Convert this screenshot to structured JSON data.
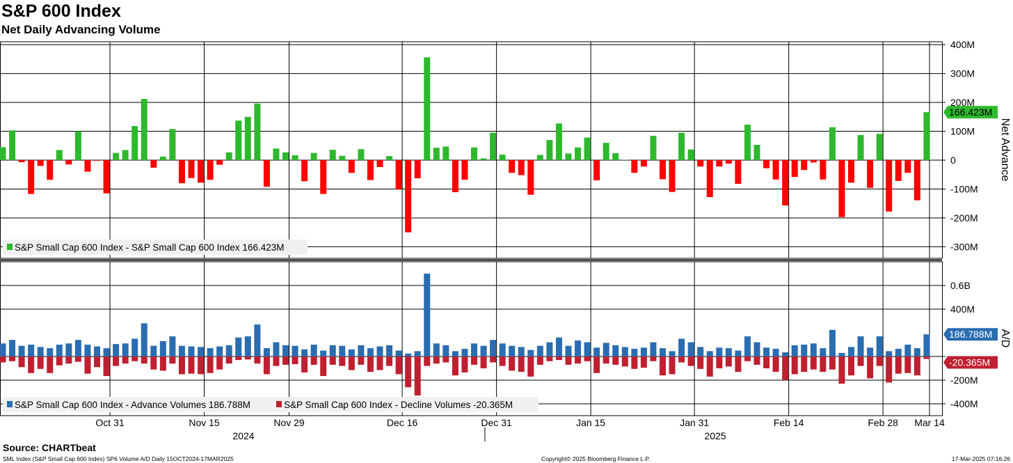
{
  "title": "S&P 600 Index",
  "subtitle": "Net Daily Advancing Volume",
  "source": "Source: CHARTbeat",
  "footer": {
    "left": "SML Index (S&P Small Cap 600 Index) SP6 Volume A/D  Daily 15OCT2024-17MAR2025",
    "center": "Copyright© 2025 Bloomberg Finance L.P.",
    "right": "17-Mar-2025 07:16:26"
  },
  "colors": {
    "up": "#2eb82e",
    "down": "#ff0000",
    "adv": "#2a6db0",
    "dec": "#bf1f2f"
  },
  "chart_data": [
    {
      "type": "bar",
      "ylabel": "Net Advance",
      "ylim": [
        -340,
        410
      ],
      "yticks": [
        400,
        300,
        200,
        100,
        0,
        -100,
        -200,
        -300
      ],
      "yticklabels": [
        "400M",
        "300M",
        "200M",
        "100M",
        "0",
        "-100M",
        "-200M",
        "-300M"
      ],
      "last_value_label": "166.423M",
      "legend": "S&P Small Cap 600 Index - S&P Small Cap 600 Index 166.423M",
      "values": [
        45,
        103,
        -7,
        -117,
        -20,
        -68,
        35,
        -15,
        100,
        -40,
        -2,
        -115,
        25,
        35,
        118,
        212,
        -26,
        12,
        108,
        -80,
        -62,
        -78,
        -68,
        -16,
        27,
        137,
        150,
        196,
        -92,
        40,
        27,
        17,
        -73,
        25,
        -117,
        36,
        15,
        -44,
        38,
        -69,
        -24,
        14,
        -102,
        -250,
        -63,
        356,
        43,
        47,
        -111,
        -68,
        44,
        6,
        95,
        19,
        -44,
        -52,
        -120,
        18,
        70,
        127,
        23,
        44,
        78,
        -70,
        60,
        24,
        1,
        -44,
        -22,
        84,
        -66,
        -110,
        95,
        37,
        -22,
        -128,
        -22,
        -12,
        -82,
        123,
        53,
        -28,
        -67,
        -157,
        -58,
        -34,
        -8,
        -67,
        114,
        -197,
        -78,
        87,
        -96,
        91,
        -178,
        -72,
        -44,
        -139,
        166
      ]
    },
    {
      "type": "bar",
      "ylabel": "A/D",
      "ylim": [
        -500,
        800
      ],
      "yticks": [
        600,
        400,
        0,
        -200,
        -400
      ],
      "yticklabels": [
        "0.6B",
        "400M",
        "",
        "-200M",
        "-400M"
      ],
      "legend": [
        {
          "name": "S&P Small Cap 600 Index - Advance Volumes 186.788M"
        },
        {
          "name": "S&P Small Cap 600 Index - Decline Volumes -20.365M"
        }
      ],
      "last_value_labels": [
        "186.788M",
        "-20.365M"
      ],
      "series": [
        {
          "name": "Advance Volumes",
          "values": [
            110,
            140,
            90,
            100,
            80,
            70,
            100,
            110,
            140,
            100,
            85,
            70,
            105,
            110,
            150,
            280,
            90,
            130,
            170,
            90,
            85,
            80,
            70,
            85,
            95,
            160,
            170,
            270,
            70,
            120,
            95,
            90,
            60,
            100,
            50,
            95,
            90,
            60,
            95,
            70,
            85,
            95,
            50,
            25,
            45,
            700,
            110,
            95,
            45,
            65,
            110,
            90,
            140,
            110,
            90,
            80,
            55,
            90,
            120,
            160,
            90,
            135,
            120,
            75,
            115,
            95,
            80,
            65,
            75,
            120,
            70,
            45,
            150,
            120,
            80,
            45,
            75,
            70,
            50,
            170,
            120,
            75,
            65,
            35,
            95,
            100,
            110,
            70,
            225,
            30,
            80,
            170,
            75,
            170,
            45,
            65,
            100,
            70,
            186.788
          ]
        },
        {
          "name": "Decline Volumes",
          "values": [
            -50,
            -40,
            -90,
            -140,
            -105,
            -140,
            -75,
            -60,
            -45,
            -145,
            -90,
            -165,
            -80,
            -60,
            -40,
            -60,
            -110,
            -120,
            -60,
            -150,
            -145,
            -150,
            -140,
            -110,
            -60,
            -30,
            -25,
            -60,
            -150,
            -80,
            -70,
            -65,
            -135,
            -70,
            -165,
            -70,
            -80,
            -115,
            -70,
            -130,
            -115,
            -80,
            -150,
            -260,
            -330,
            -80,
            -60,
            -50,
            -160,
            -135,
            -70,
            -100,
            -50,
            -80,
            -120,
            -130,
            -170,
            -70,
            -40,
            -30,
            -70,
            -60,
            -40,
            -140,
            -60,
            -70,
            -85,
            -105,
            -95,
            -40,
            -160,
            -150,
            -50,
            -80,
            -105,
            -170,
            -100,
            -85,
            -130,
            -40,
            -70,
            -100,
            -130,
            -200,
            -150,
            -130,
            -110,
            -130,
            -110,
            -230,
            -160,
            -80,
            -185,
            -80,
            -220,
            -145,
            -140,
            -160,
            -20.365
          ]
        }
      ]
    }
  ],
  "xaxis": {
    "ticks": [
      "Oct 31",
      "Nov 15",
      "Nov 29",
      "Dec 16",
      "Dec 31",
      "Jan 15",
      "Jan 31",
      "Feb 14",
      "Feb 28",
      "Mar 14"
    ],
    "years": [
      "2024",
      "2025"
    ]
  }
}
